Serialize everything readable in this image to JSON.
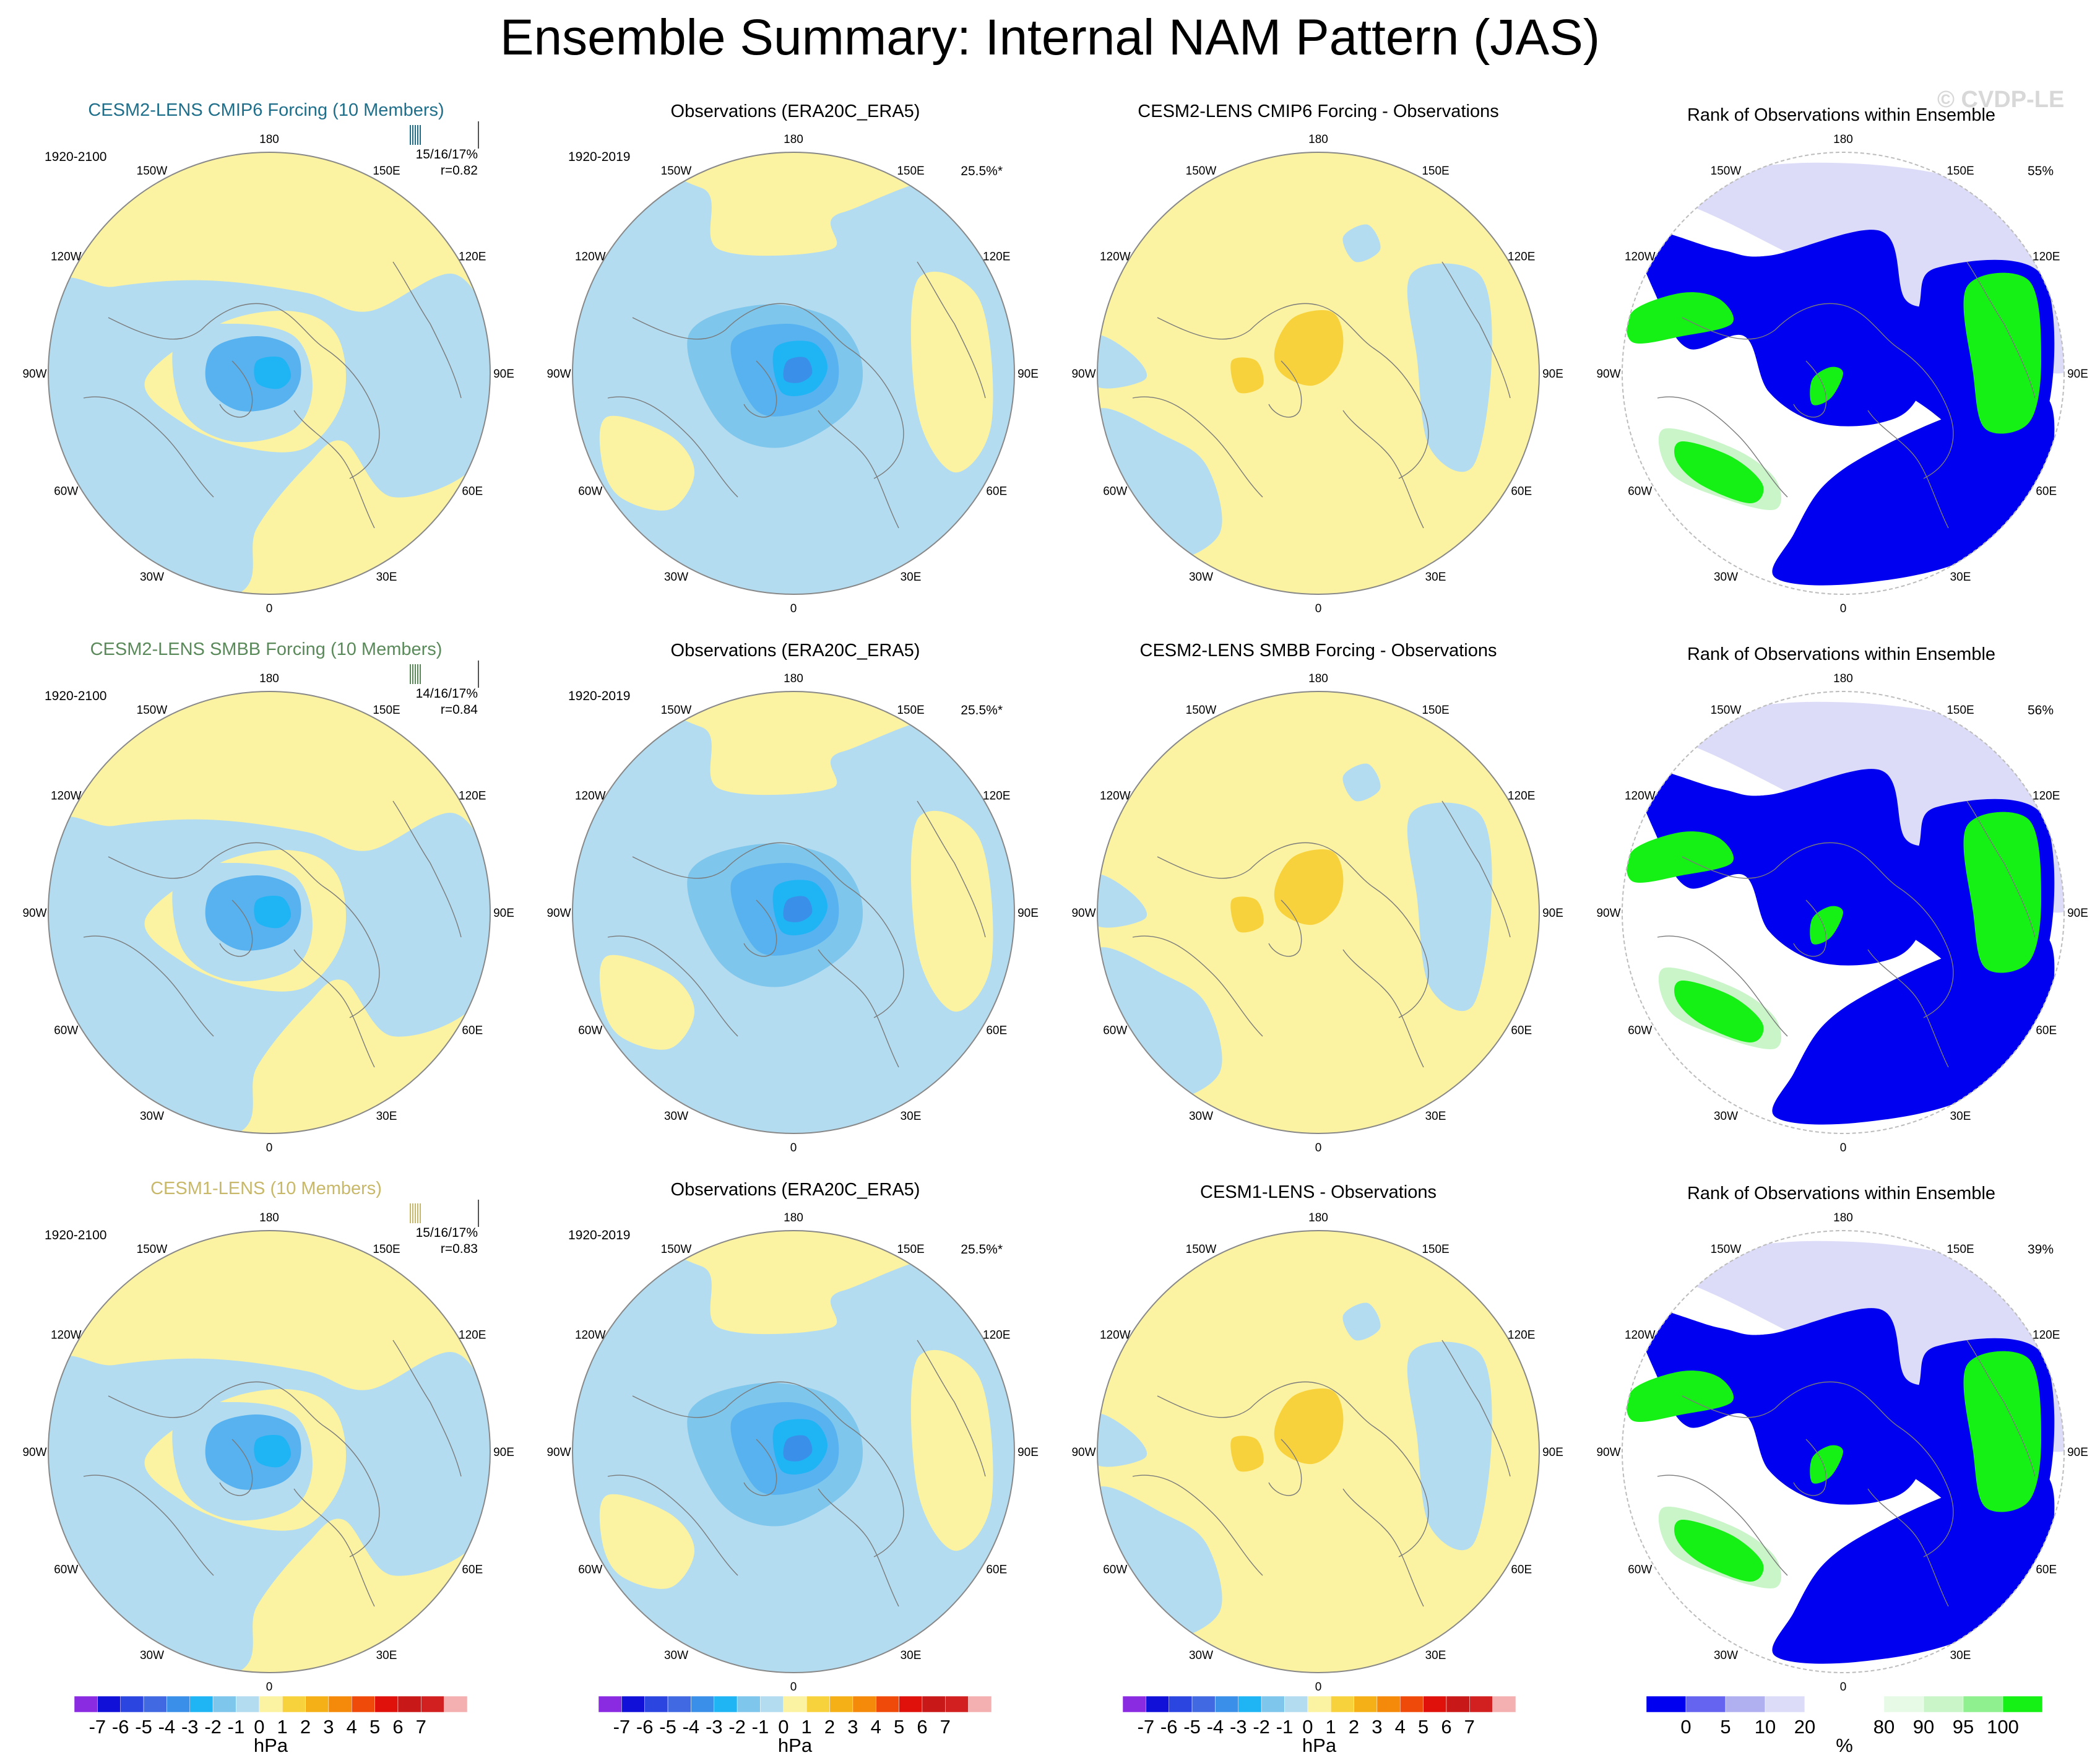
{
  "title": "Ensemble Summary: Internal NAM Pattern (JAS)",
  "watermark": "© CVDP-LE",
  "colors": {
    "blue": "#b3dcf0",
    "yellow": "#fbf3a2",
    "blue2": "#7ec6ec",
    "blue3": "#58b2ef",
    "blue4": "#1fb5f5",
    "blue5": "#3a8fe8",
    "orange1": "#f8d23d",
    "rank_blue": "#0000f0",
    "rank_green": "#15f015",
    "rank_lightgreen": "#c9f5c9",
    "rank_lavender": "#dcdcf8",
    "model1_title": "#1f6f8b",
    "model2_title": "#5a8a5a",
    "model3_title": "#c8b86a"
  },
  "lon_labels": [
    "180",
    "150E",
    "120E",
    "90E",
    "60E",
    "30E",
    "0",
    "30W",
    "60W",
    "90W",
    "120W",
    "150W"
  ],
  "rows": [
    {
      "model": {
        "title": "CESM2-LENS CMIP6 Forcing (10 Members)",
        "period": "1920-2100",
        "stat1": "15/16/17%",
        "stat2": "r=0.82"
      },
      "obs": {
        "title": "Observations (ERA20C_ERA5)",
        "period": "1920-2019",
        "stat1": "25.5%*"
      },
      "diff": {
        "title": "CESM2-LENS CMIP6 Forcing - Observations"
      },
      "rank": {
        "title": "Rank of Observations within Ensemble",
        "stat1": "55%"
      }
    },
    {
      "model": {
        "title": "CESM2-LENS SMBB Forcing (10 Members)",
        "period": "1920-2100",
        "stat1": "14/16/17%",
        "stat2": "r=0.84"
      },
      "obs": {
        "title": "Observations (ERA20C_ERA5)",
        "period": "1920-2019",
        "stat1": "25.5%*"
      },
      "diff": {
        "title": "CESM2-LENS SMBB Forcing - Observations"
      },
      "rank": {
        "title": "Rank of Observations within Ensemble",
        "stat1": "56%"
      }
    },
    {
      "model": {
        "title": "CESM1-LENS (10 Members)",
        "period": "1920-2100",
        "stat1": "15/16/17%",
        "stat2": "r=0.83"
      },
      "obs": {
        "title": "Observations (ERA20C_ERA5)",
        "period": "1920-2019",
        "stat1": "25.5%*"
      },
      "diff": {
        "title": "CESM1-LENS - Observations"
      },
      "rank": {
        "title": "Rank of Observations within Ensemble",
        "stat1": "39%"
      }
    }
  ],
  "colorbar_hpa": {
    "labels": [
      "-7",
      "-6",
      "-5",
      "-4",
      "-3",
      "-2",
      "-1",
      "0",
      "1",
      "2",
      "3",
      "4",
      "5",
      "6",
      "7"
    ],
    "units": "hPa",
    "colors": [
      "#8a2be2",
      "#1010d8",
      "#2b45e0",
      "#4169e1",
      "#3a8fe8",
      "#1fb5f5",
      "#7ec6ec",
      "#b3dcf0",
      "#fbf3a2",
      "#f8d23d",
      "#f5b018",
      "#f58a0a",
      "#f04a0a",
      "#e0100a",
      "#c81818",
      "#d22020",
      "#f4b0b0"
    ]
  },
  "colorbar_rank": {
    "labels": [
      "0",
      "5",
      "10",
      "20",
      "80",
      "90",
      "95",
      "100"
    ],
    "units": "%",
    "colors": [
      "#0000f0",
      "#6464f0",
      "#b0b0f0",
      "#dcdcf8",
      "#ffffff",
      "#ffffff",
      "#e6fae6",
      "#c9f5c9",
      "#8ef08e",
      "#15f015"
    ]
  },
  "chart_data": {
    "type": "heatmap",
    "description_type": "polar stereographic maps, 3 rows x 4 columns",
    "units": [
      "hPa",
      "%"
    ],
    "contour_levels_hpa": [
      -7,
      -6,
      -5,
      -4,
      -3,
      -2,
      -1,
      0,
      1,
      2,
      3,
      4,
      5,
      6,
      7
    ],
    "rank_levels_percent": [
      0,
      5,
      10,
      20,
      80,
      90,
      95,
      100
    ],
    "pattern_correlations": [
      0.82,
      0.84,
      0.83
    ],
    "obs_variance_explained_percent": 25.5,
    "rank_percent_within_ensemble": [
      55,
      56,
      39
    ]
  }
}
